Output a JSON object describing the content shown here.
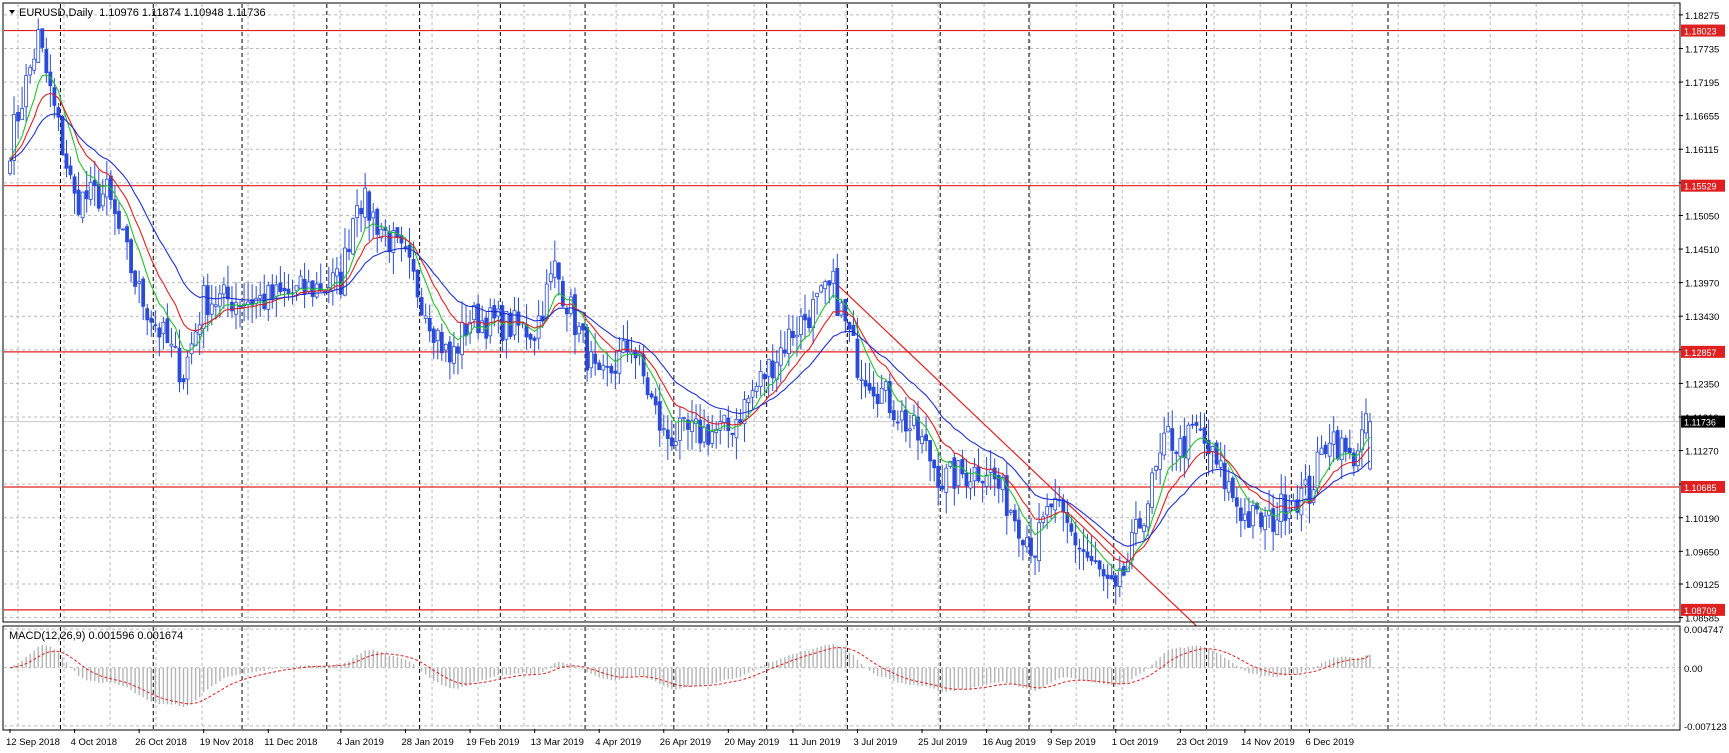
{
  "header": {
    "symbol_line": "EURUSD,Daily  1.10976 1.11874 1.10948 1.11736"
  },
  "macd_header": "MACD(12,26,9) 0.001596 0.001674",
  "colors": {
    "background": "#ffffff",
    "grid": "#b9b9b9",
    "candle": "#2a4bd7",
    "ma_fast": "#22c32a",
    "ma_mid": "#e02020",
    "ma_slow": "#1f2fd6",
    "level": "#e02020",
    "label_bg": "#e02020",
    "label_current_bg": "#000000",
    "macd_hist": "#b4b4b4",
    "macd_signal": "#e02020"
  },
  "chart_data": {
    "type": "candlestick",
    "symbol": "EURUSD",
    "timeframe": "Daily",
    "last_bar": {
      "open": 1.10976,
      "high": 1.11874,
      "low": 1.10948,
      "close": 1.11736
    },
    "price_ticks": [
      "1.18275",
      "1.17735",
      "1.17195",
      "1.16655",
      "1.16115",
      "1.15575",
      "1.15050",
      "1.14510",
      "1.13970",
      "1.13430",
      "1.12890",
      "1.12350",
      "1.11810",
      "1.11270",
      "1.10730",
      "1.10190",
      "1.09650",
      "1.09125",
      "1.08585"
    ],
    "ylim": [
      1.0853,
      1.1845
    ],
    "levels": [
      {
        "label": "1.18023",
        "value": 1.18023
      },
      {
        "label": "1.15529",
        "value": 1.15529
      },
      {
        "label": "1.12857",
        "value": 1.12857
      },
      {
        "label": "1.10685",
        "value": 1.10685
      },
      {
        "label": "1.08709",
        "value": 1.08709
      }
    ],
    "current_price_label": "1.11736",
    "current_price": 1.11736,
    "date_labels": [
      "12 Sep 2018",
      "4 Oct 2018",
      "26 Oct 2018",
      "19 Nov 2018",
      "11 Dec 2018",
      "4 Jan 2019",
      "28 Jan 2019",
      "19 Feb 2019",
      "13 Mar 2019",
      "4 Apr 2019",
      "26 Apr 2019",
      "20 May 2019",
      "11 Jun 2019",
      "3 Jul 2019",
      "25 Jul 2019",
      "16 Aug 2019",
      "9 Sep 2019",
      "1 Oct 2019",
      "23 Oct 2019",
      "14 Nov 2019",
      "6 Dec 2019"
    ],
    "close_anchors": [
      [
        "12 Sep 2018",
        1.162
      ],
      [
        "21 Sep 2018",
        1.179
      ],
      [
        "4 Oct 2018",
        1.153
      ],
      [
        "16 Oct 2018",
        1.154
      ],
      [
        "26 Oct 2018",
        1.138
      ],
      [
        "12 Nov 2018",
        1.125
      ],
      [
        "19 Nov 2018",
        1.137
      ],
      [
        "11 Dec 2018",
        1.137
      ],
      [
        "4 Jan 2019",
        1.14
      ],
      [
        "10 Jan 2019",
        1.154
      ],
      [
        "28 Jan 2019",
        1.143
      ],
      [
        "12 Feb 2019",
        1.127
      ],
      [
        "19 Feb 2019",
        1.134
      ],
      [
        "13 Mar 2019",
        1.132
      ],
      [
        "20 Mar 2019",
        1.142
      ],
      [
        "4 Apr 2019",
        1.123
      ],
      [
        "16 Apr 2019",
        1.13
      ],
      [
        "26 Apr 2019",
        1.115
      ],
      [
        "20 May 2019",
        1.116
      ],
      [
        "31 May 2019",
        1.125
      ],
      [
        "11 Jun 2019",
        1.132
      ],
      [
        "25 Jun 2019",
        1.139
      ],
      [
        "3 Jul 2019",
        1.127
      ],
      [
        "25 Jul 2019",
        1.114
      ],
      [
        "1 Aug 2019",
        1.108
      ],
      [
        "16 Aug 2019",
        1.11
      ],
      [
        "3 Sep 2019",
        1.097
      ],
      [
        "9 Sep 2019",
        1.104
      ],
      [
        "1 Oct 2019",
        1.089
      ],
      [
        "10 Oct 2019",
        1.103
      ],
      [
        "18 Oct 2019",
        1.115
      ],
      [
        "23 Oct 2019",
        1.113
      ],
      [
        "29 Oct 2019",
        1.116
      ],
      [
        "14 Nov 2019",
        1.102
      ],
      [
        "22 Nov 2019",
        1.101
      ],
      [
        "29 Nov 2019",
        1.105
      ],
      [
        "6 Dec 2019",
        1.106
      ],
      [
        "13 Dec 2019",
        1.116
      ],
      [
        "20 Dec 2019",
        1.111
      ],
      [
        "27 Dec 2019",
        1.1174
      ]
    ],
    "moving_averages": [
      {
        "name": "MA fast",
        "color": "#22c32a",
        "period": 8
      },
      {
        "name": "MA mid",
        "color": "#e02020",
        "period": 14
      },
      {
        "name": "MA slow",
        "color": "#1f2fd6",
        "period": 26
      }
    ],
    "trendline": {
      "from": [
        "25 Jun 2019",
        1.14
      ],
      "to": [
        "29 Oct 2019",
        1.0845
      ]
    },
    "macd": {
      "params": "12,26,9",
      "value": 0.001596,
      "signal": 0.001674,
      "ticks": [
        "0.004747",
        "0.00",
        "-0.007123"
      ],
      "ylim": [
        -0.0075,
        0.005
      ]
    }
  }
}
